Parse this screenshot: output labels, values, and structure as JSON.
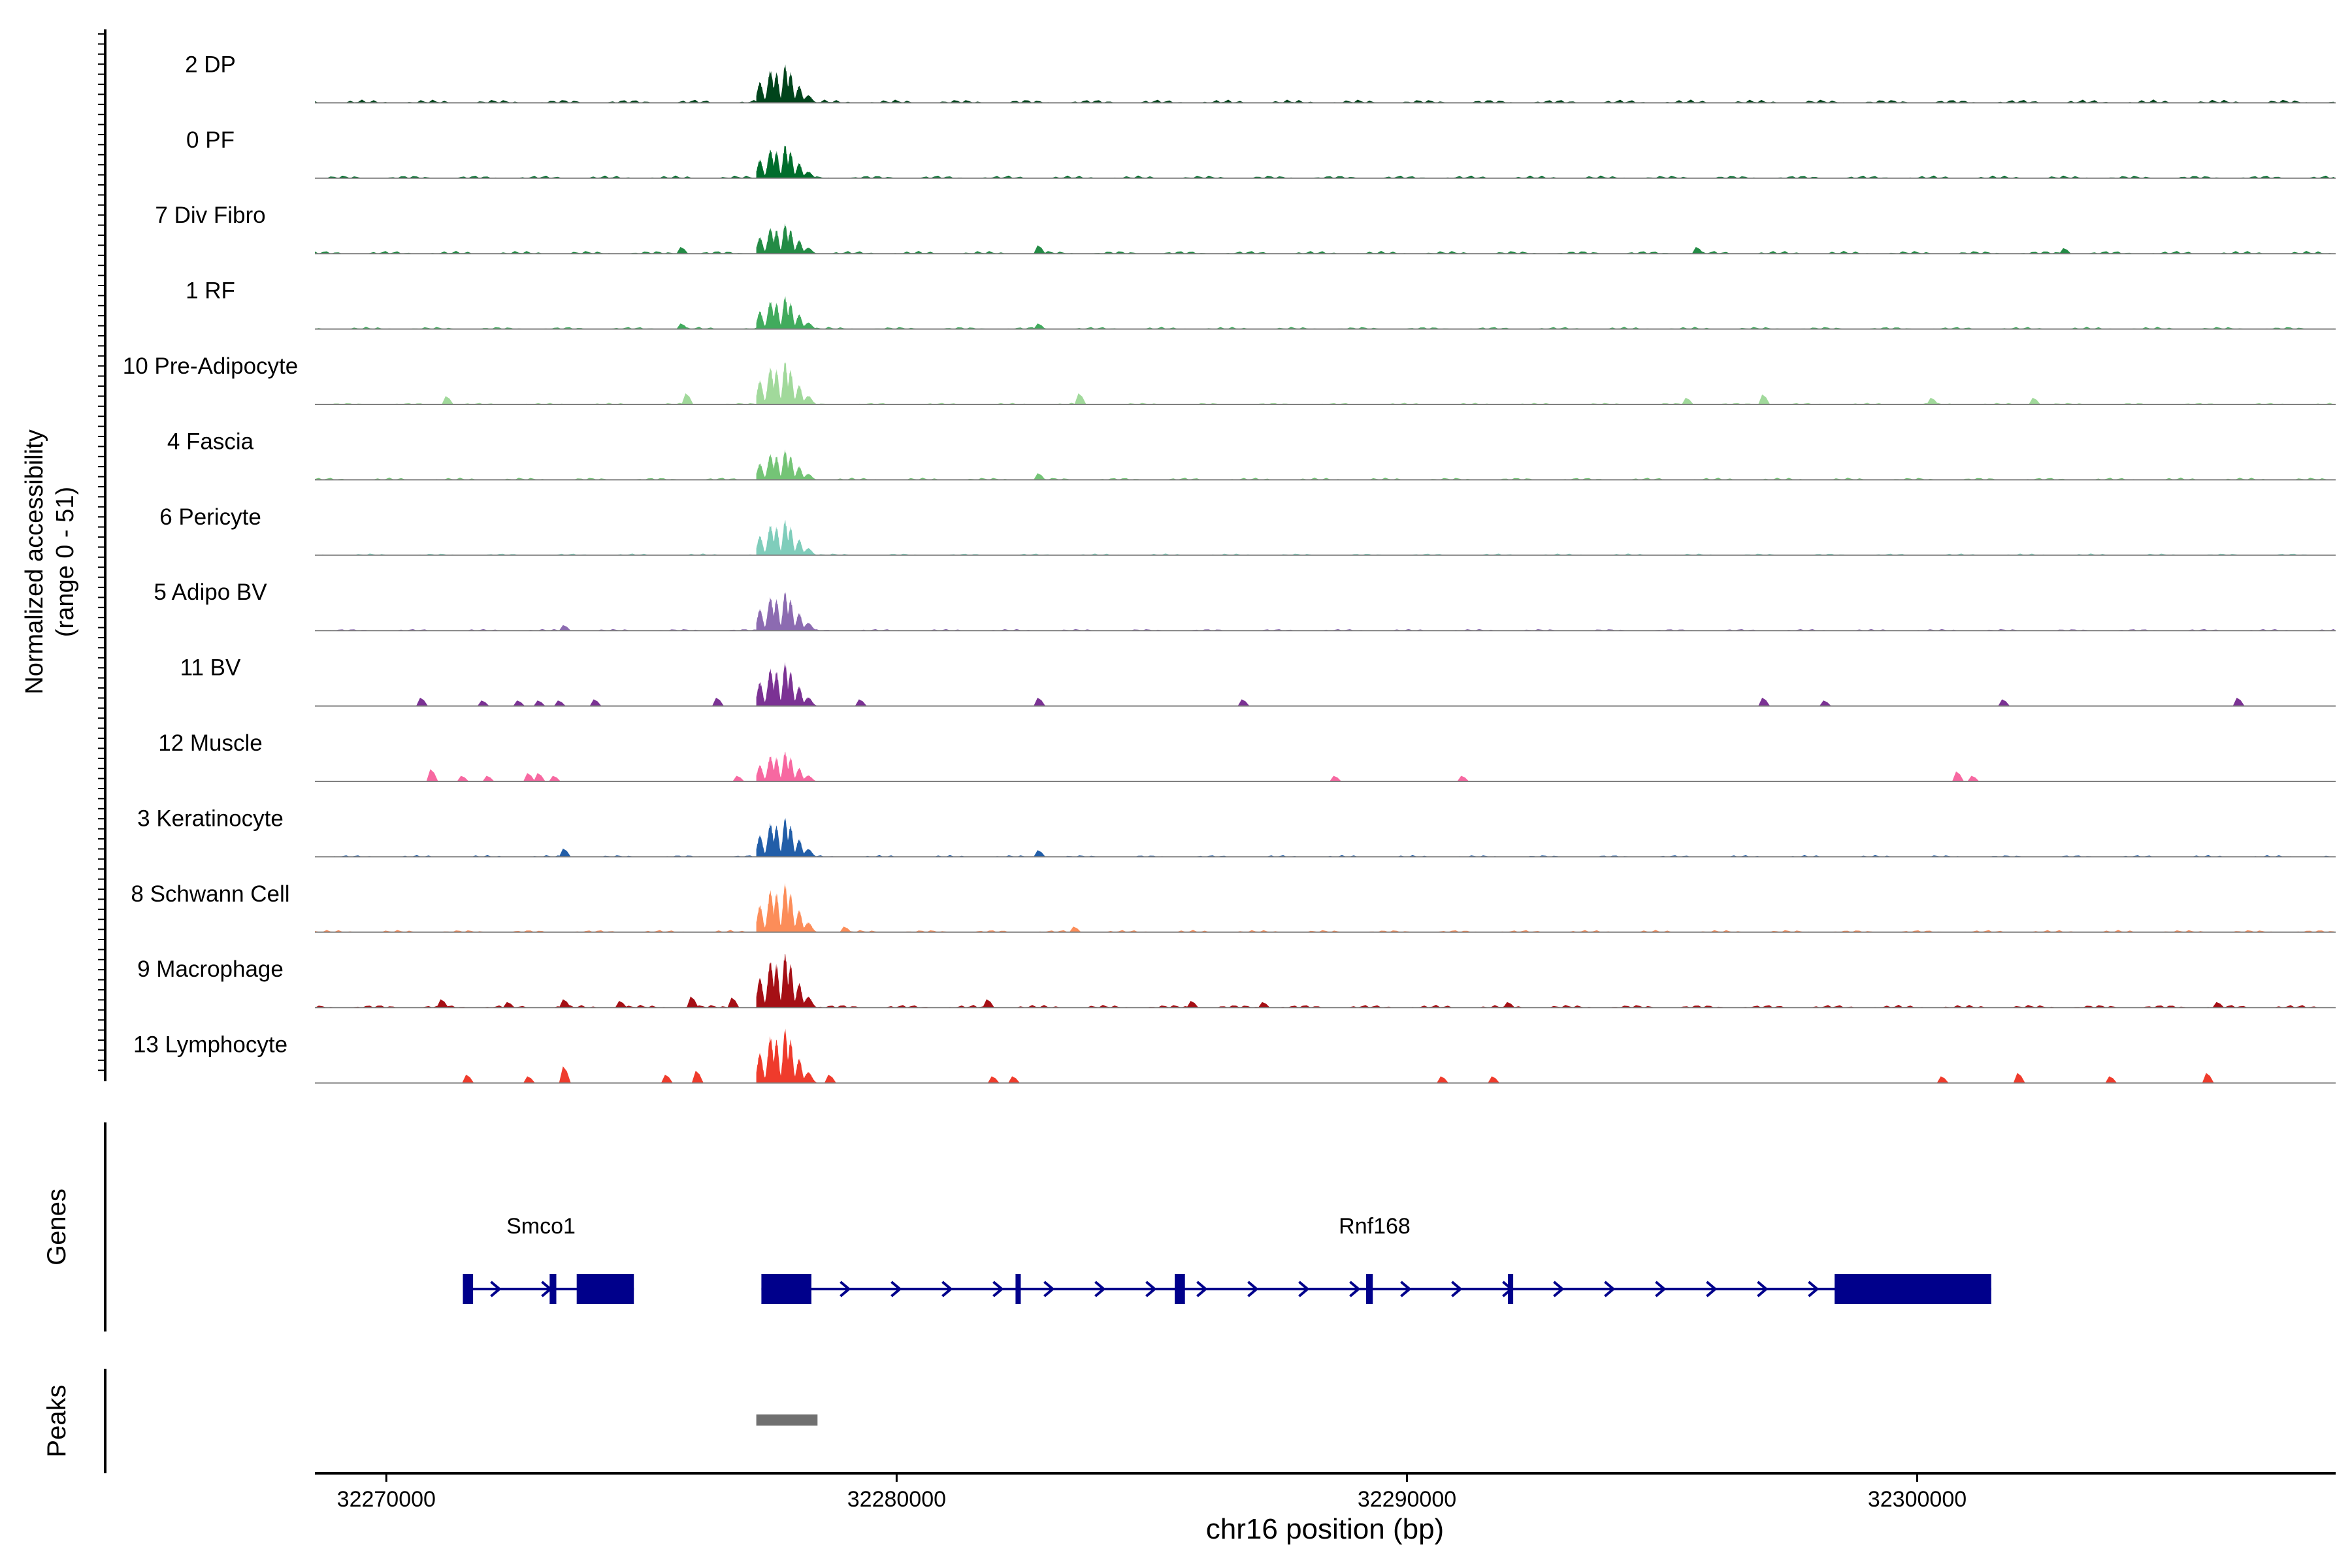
{
  "chart_data": {
    "type": "area",
    "title": "",
    "xlabel": "chr16 position (bp)",
    "ylabel": "Normalized accessibility",
    "ylabel_range": "(range 0 - 51)",
    "xlim": [
      32268600,
      32308200
    ],
    "ylim": [
      0,
      51
    ],
    "x_ticks": [
      32270000,
      32280000,
      32290000,
      32300000
    ],
    "x_tick_labels": [
      "32270000",
      "32280000",
      "32290000",
      "32300000"
    ],
    "main_peak": {
      "start": 32277250,
      "end": 32278450
    },
    "tracks": [
      {
        "name": "2 DP",
        "color": "#00441b",
        "main_height": 0.7,
        "bg_level": 0.06,
        "bg_peaks": []
      },
      {
        "name": "0 PF",
        "color": "#006d2c",
        "main_height": 0.62,
        "bg_level": 0.05,
        "bg_peaks": []
      },
      {
        "name": "7 Div Fibro",
        "color": "#238b45",
        "main_height": 0.55,
        "bg_level": 0.05,
        "bg_peaks": [
          [
            32275800,
            0.12
          ],
          [
            32282800,
            0.15
          ],
          [
            32295700,
            0.12
          ],
          [
            32302900,
            0.1
          ]
        ]
      },
      {
        "name": "1 RF",
        "color": "#41ab5d",
        "main_height": 0.6,
        "bg_level": 0.04,
        "bg_peaks": [
          [
            32275800,
            0.1
          ],
          [
            32282800,
            0.1
          ]
        ]
      },
      {
        "name": "10 Pre-Adipocyte",
        "color": "#a1d99b",
        "main_height": 0.8,
        "bg_level": 0.03,
        "bg_peaks": [
          [
            32271200,
            0.15
          ],
          [
            32275900,
            0.2
          ],
          [
            32283600,
            0.2
          ],
          [
            32295500,
            0.12
          ],
          [
            32297000,
            0.18
          ],
          [
            32300300,
            0.12
          ],
          [
            32302300,
            0.12
          ]
        ]
      },
      {
        "name": "4 Fascia",
        "color": "#74c476",
        "main_height": 0.55,
        "bg_level": 0.04,
        "bg_peaks": [
          [
            32282800,
            0.12
          ]
        ]
      },
      {
        "name": "6 Pericyte",
        "color": "#7fcdbb",
        "main_height": 0.65,
        "bg_level": 0.03,
        "bg_peaks": []
      },
      {
        "name": "5 Adipo BV",
        "color": "#8c6bb1",
        "main_height": 0.72,
        "bg_level": 0.03,
        "bg_peaks": [
          [
            32273500,
            0.1
          ]
        ]
      },
      {
        "name": "11 BV",
        "color": "#7b3294",
        "main_height": 0.8,
        "bg_level": 0.0,
        "bg_peaks": [
          [
            32270700,
            0.15
          ],
          [
            32271900,
            0.1
          ],
          [
            32272600,
            0.1
          ],
          [
            32273000,
            0.1
          ],
          [
            32273400,
            0.1
          ],
          [
            32274100,
            0.12
          ],
          [
            32276500,
            0.15
          ],
          [
            32279300,
            0.12
          ],
          [
            32282800,
            0.15
          ],
          [
            32286800,
            0.12
          ],
          [
            32297000,
            0.15
          ],
          [
            32298200,
            0.1
          ],
          [
            32301700,
            0.12
          ],
          [
            32306300,
            0.15
          ]
        ]
      },
      {
        "name": "12 Muscle",
        "color": "#f768a1",
        "main_height": 0.55,
        "bg_level": 0.0,
        "bg_peaks": [
          [
            32270900,
            0.22
          ],
          [
            32271500,
            0.1
          ],
          [
            32272000,
            0.1
          ],
          [
            32272800,
            0.15
          ],
          [
            32273000,
            0.15
          ],
          [
            32273300,
            0.1
          ],
          [
            32276900,
            0.1
          ],
          [
            32288600,
            0.1
          ],
          [
            32291100,
            0.1
          ],
          [
            32300800,
            0.18
          ],
          [
            32301100,
            0.1
          ]
        ]
      },
      {
        "name": "3 Keratinocyte",
        "color": "#225ea8",
        "main_height": 0.72,
        "bg_level": 0.03,
        "bg_peaks": [
          [
            32273500,
            0.15
          ],
          [
            32282800,
            0.12
          ]
        ]
      },
      {
        "name": "8 Schwann Cell",
        "color": "#fc8d59",
        "main_height": 0.9,
        "bg_level": 0.04,
        "bg_peaks": [
          [
            32279000,
            0.1
          ],
          [
            32283500,
            0.1
          ]
        ]
      },
      {
        "name": "9 Macrophage",
        "color": "#a50f15",
        "main_height": 1.0,
        "bg_level": 0.05,
        "bg_peaks": [
          [
            32271100,
            0.15
          ],
          [
            32272400,
            0.1
          ],
          [
            32273500,
            0.15
          ],
          [
            32274600,
            0.12
          ],
          [
            32276000,
            0.2
          ],
          [
            32276800,
            0.18
          ],
          [
            32281800,
            0.15
          ],
          [
            32285800,
            0.12
          ],
          [
            32287200,
            0.1
          ],
          [
            32292000,
            0.1
          ],
          [
            32305900,
            0.1
          ]
        ]
      },
      {
        "name": "13 Lymphocyte",
        "color": "#ef3b2c",
        "main_height": 1.0,
        "bg_level": 0.0,
        "bg_peaks": [
          [
            32271600,
            0.15
          ],
          [
            32272800,
            0.12
          ],
          [
            32273500,
            0.3
          ],
          [
            32275500,
            0.15
          ],
          [
            32276100,
            0.22
          ],
          [
            32278700,
            0.15
          ],
          [
            32281900,
            0.12
          ],
          [
            32282300,
            0.12
          ],
          [
            32290700,
            0.12
          ],
          [
            32291700,
            0.12
          ],
          [
            32300500,
            0.12
          ],
          [
            32302000,
            0.18
          ],
          [
            32303800,
            0.12
          ],
          [
            32305700,
            0.18
          ]
        ]
      }
    ],
    "genes_panel_label": "Genes",
    "genes": [
      {
        "name": "Smco1",
        "start": 32271500,
        "end": 32274850,
        "exons": [
          [
            32271500,
            32271700
          ],
          [
            32273200,
            32273330
          ],
          [
            32273730,
            32274850
          ]
        ]
      },
      {
        "name": "Rnf168",
        "start": 32277350,
        "end": 32301450,
        "exons": [
          [
            32277350,
            32278330
          ],
          [
            32282330,
            32282430
          ],
          [
            32285450,
            32285650
          ],
          [
            32289200,
            32289330
          ],
          [
            32291980,
            32292060
          ],
          [
            32298380,
            32301450
          ]
        ]
      }
    ],
    "gene_color": "#00008b",
    "peaks_panel_label": "Peaks",
    "peaks": [
      [
        32277250,
        32278450
      ]
    ],
    "peak_color": "#707070"
  }
}
